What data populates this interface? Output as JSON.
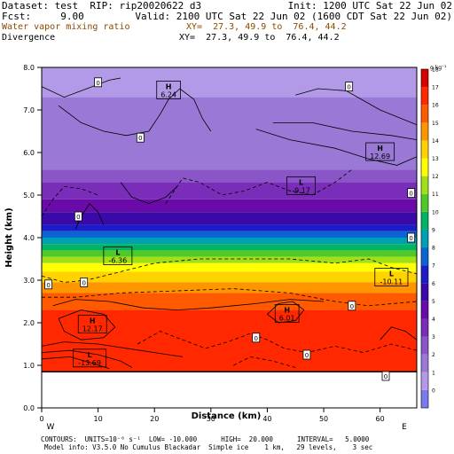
{
  "header": {
    "line1_left": "Dataset: test  RIP: rip20020622 d3",
    "line1_right": "Init: 1200 UTC Sat 22 Jun 02",
    "line2_left": "Fcst:     9.00",
    "line2_right": "Valid: 2100 UTC Sat 22 Jun 02 (1600 CDT Sat 22 Jun 02)",
    "line3_left": "Water vapor mixing ratio",
    "line3_right": "XY=  27.3, 49.9 to  76.4, 44.2",
    "line4_left": "Divergence",
    "line4_right": "XY=  27.3, 49.9 to  76.4, 44.2",
    "colors": {
      "line3": "#8b4a00"
    }
  },
  "footer": {
    "line1": "CONTOURS:  UNITS=10⁻⁶ s⁻¹  LOW= -10.000      HIGH=  20.000      INTERVAL=   5.0000",
    "line2": "Model info: V3.5.0 No Cumulus Blackadar  Simple ice    1 km,   29 levels,    3 sec"
  },
  "chart_data": {
    "type": "heatmap",
    "xlabel": "Distance (km)",
    "ylabel": "Height (km)",
    "xlim": [
      0,
      66.5
    ],
    "ylim": [
      0,
      8.0
    ],
    "x_ticks": [
      0,
      10,
      20,
      30,
      40,
      50,
      60
    ],
    "y_ticks": [
      "0.0",
      "1.0",
      "2.0",
      "3.0",
      "4.0",
      "5.0",
      "6.0",
      "7.0",
      "8.0"
    ],
    "x_end_labels": {
      "left": "W",
      "right": "E"
    },
    "colorbar": {
      "unit_label": "g kg⁻¹",
      "levels": [
        -1,
        0,
        1,
        2,
        3,
        4,
        5,
        6,
        7,
        8,
        9,
        10,
        11,
        12,
        13,
        14,
        15,
        16,
        17,
        18
      ],
      "tick_labels": [
        "0",
        "1",
        "2",
        "3",
        "4",
        "5",
        "6",
        "7",
        "8",
        "9",
        "10",
        "11",
        "12",
        "13",
        "14",
        "15",
        "16",
        "17",
        "18"
      ],
      "colors": [
        "#7b7bf0",
        "#b39ae8",
        "#9a79d6",
        "#8a55c6",
        "#7a2db8",
        "#6a0aa8",
        "#3a0aa8",
        "#1c1cc8",
        "#0a64d2",
        "#00a0b4",
        "#00b464",
        "#50c828",
        "#a0e018",
        "#ffff00",
        "#ffd200",
        "#ff9600",
        "#ff5a00",
        "#ff2800",
        "#d70000"
      ]
    },
    "moisture_bands": [
      {
        "top": 8.0,
        "bottom": 7.3,
        "value": 0
      },
      {
        "top": 7.3,
        "bottom": 5.6,
        "value": 1
      },
      {
        "top": 5.6,
        "bottom": 5.3,
        "value": 2
      },
      {
        "top": 5.3,
        "bottom": 4.9,
        "value": 3
      },
      {
        "top": 4.9,
        "bottom": 4.6,
        "value": 4
      },
      {
        "top": 4.6,
        "bottom": 4.3,
        "value": 5
      },
      {
        "top": 4.3,
        "bottom": 4.15,
        "value": 6
      },
      {
        "top": 4.15,
        "bottom": 4.0,
        "value": 7
      },
      {
        "top": 4.0,
        "bottom": 3.85,
        "value": 8
      },
      {
        "top": 3.85,
        "bottom": 3.7,
        "value": 9
      },
      {
        "top": 3.7,
        "bottom": 3.55,
        "value": 10
      },
      {
        "top": 3.55,
        "bottom": 3.4,
        "value": 11
      },
      {
        "top": 3.4,
        "bottom": 3.2,
        "value": 12
      },
      {
        "top": 3.2,
        "bottom": 2.95,
        "value": 13
      },
      {
        "top": 2.95,
        "bottom": 2.7,
        "value": 14
      },
      {
        "top": 2.7,
        "bottom": 2.3,
        "value": 15
      },
      {
        "top": 2.3,
        "bottom": 0.85,
        "value": 16
      }
    ],
    "terrain_top": 0.85,
    "extrema_labels": [
      {
        "kind": "H",
        "value": "6.24",
        "x": 22.5,
        "y": 7.45
      },
      {
        "kind": "H",
        "value": "12.69",
        "x": 60,
        "y": 6.0
      },
      {
        "kind": "L",
        "value": "-9.17",
        "x": 46,
        "y": 5.2
      },
      {
        "kind": "L",
        "value": "-6.36",
        "x": 13.5,
        "y": 3.55
      },
      {
        "kind": "L",
        "value": "-10.11",
        "x": 62,
        "y": 3.05
      },
      {
        "kind": "H",
        "value": "12.17",
        "x": 9,
        "y": 1.95
      },
      {
        "kind": "H",
        "value": "6.01",
        "x": 43.5,
        "y": 2.2
      },
      {
        "kind": "L",
        "value": "-13.69",
        "x": 8.5,
        "y": 1.15
      }
    ],
    "zero_labels": [
      {
        "x": 10,
        "y": 7.65
      },
      {
        "x": 54.5,
        "y": 7.55
      },
      {
        "x": 17.5,
        "y": 6.35
      },
      {
        "x": 65.5,
        "y": 5.05
      },
      {
        "x": 6.5,
        "y": 4.5
      },
      {
        "x": 65.5,
        "y": 4.0
      },
      {
        "x": 1.2,
        "y": 2.9
      },
      {
        "x": 7.5,
        "y": 2.95
      },
      {
        "x": 55,
        "y": 2.4
      },
      {
        "x": 38,
        "y": 1.65
      },
      {
        "x": 47,
        "y": 1.25
      },
      {
        "x": 61,
        "y": 0.75
      }
    ],
    "contours": [
      {
        "style": "solid",
        "pts": [
          [
            0,
            7.55
          ],
          [
            4,
            7.3
          ],
          [
            8,
            7.5
          ],
          [
            12,
            7.7
          ],
          [
            14,
            7.75
          ]
        ]
      },
      {
        "style": "solid",
        "pts": [
          [
            3,
            7.1
          ],
          [
            7,
            6.7
          ],
          [
            11,
            6.5
          ],
          [
            15,
            6.4
          ],
          [
            19,
            6.5
          ],
          [
            21,
            6.9
          ],
          [
            22.5,
            7.25
          ],
          [
            24.5,
            7.5
          ],
          [
            27,
            7.25
          ],
          [
            28.5,
            6.8
          ],
          [
            30,
            6.5
          ]
        ]
      },
      {
        "style": "solid",
        "pts": [
          [
            45,
            7.35
          ],
          [
            49,
            7.5
          ],
          [
            54,
            7.45
          ],
          [
            60,
            7.0
          ],
          [
            66.5,
            6.65
          ]
        ]
      },
      {
        "style": "solid",
        "pts": [
          [
            38,
            6.55
          ],
          [
            44,
            6.3
          ],
          [
            52,
            6.1
          ],
          [
            58,
            5.85
          ],
          [
            63,
            5.7
          ],
          [
            66.5,
            5.9
          ]
        ]
      },
      {
        "style": "solid",
        "pts": [
          [
            41,
            6.7
          ],
          [
            48,
            6.7
          ],
          [
            55,
            6.5
          ],
          [
            62,
            6.4
          ],
          [
            66.5,
            6.3
          ]
        ]
      },
      {
        "style": "solid",
        "pts": [
          [
            14,
            5.3
          ],
          [
            16,
            4.95
          ],
          [
            19,
            4.8
          ],
          [
            22,
            4.95
          ],
          [
            24,
            5.2
          ]
        ]
      },
      {
        "style": "solid",
        "pts": [
          [
            6,
            4.2
          ],
          [
            7,
            4.5
          ],
          [
            8.5,
            4.8
          ],
          [
            10,
            4.6
          ],
          [
            11,
            4.3
          ]
        ]
      },
      {
        "style": "dashed",
        "pts": [
          [
            0,
            4.5
          ],
          [
            2,
            4.9
          ],
          [
            4,
            5.2
          ],
          [
            7,
            5.15
          ],
          [
            10,
            5.0
          ]
        ]
      },
      {
        "style": "dashed",
        "pts": [
          [
            22,
            4.8
          ],
          [
            25,
            5.4
          ],
          [
            28,
            5.3
          ],
          [
            32,
            5.0
          ],
          [
            36,
            5.1
          ],
          [
            40,
            5.3
          ],
          [
            44,
            5.1
          ],
          [
            48,
            5.0
          ],
          [
            52,
            5.3
          ],
          [
            55,
            5.6
          ]
        ]
      },
      {
        "style": "dashed",
        "pts": [
          [
            0,
            3.1
          ],
          [
            4,
            2.95
          ],
          [
            8,
            3.0
          ],
          [
            14,
            3.2
          ],
          [
            20,
            3.4
          ],
          [
            28,
            3.5
          ],
          [
            36,
            3.5
          ],
          [
            44,
            3.5
          ],
          [
            52,
            3.4
          ],
          [
            58,
            3.5
          ],
          [
            62,
            3.3
          ],
          [
            66.5,
            3.15
          ]
        ]
      },
      {
        "style": "dashed",
        "pts": [
          [
            0,
            2.6
          ],
          [
            6,
            2.6
          ],
          [
            14,
            2.7
          ],
          [
            24,
            2.75
          ],
          [
            34,
            2.8
          ],
          [
            44,
            2.7
          ],
          [
            52,
            2.5
          ],
          [
            58,
            2.4
          ],
          [
            66.5,
            2.5
          ]
        ]
      },
      {
        "style": "solid",
        "pts": [
          [
            2,
            2.4
          ],
          [
            6,
            2.55
          ],
          [
            12,
            2.5
          ],
          [
            18,
            2.35
          ],
          [
            24,
            2.3
          ],
          [
            30,
            2.35
          ],
          [
            38,
            2.45
          ],
          [
            44,
            2.55
          ],
          [
            50,
            2.5
          ]
        ]
      },
      {
        "style": "solid",
        "pts": [
          [
            3,
            2.1
          ],
          [
            7,
            2.3
          ],
          [
            11,
            2.2
          ],
          [
            13,
            1.9
          ],
          [
            11,
            1.65
          ],
          [
            7,
            1.6
          ],
          [
            4,
            1.8
          ],
          [
            3,
            2.1
          ]
        ]
      },
      {
        "style": "solid",
        "pts": [
          [
            0,
            1.45
          ],
          [
            4,
            1.55
          ],
          [
            10,
            1.5
          ],
          [
            15,
            1.4
          ],
          [
            20,
            1.3
          ],
          [
            25,
            1.2
          ]
        ]
      },
      {
        "style": "solid",
        "pts": [
          [
            0,
            1.3
          ],
          [
            5,
            1.35
          ],
          [
            10,
            1.25
          ],
          [
            14,
            1.1
          ],
          [
            16,
            0.95
          ]
        ]
      },
      {
        "style": "solid",
        "pts": [
          [
            0,
            1.15
          ],
          [
            5,
            1.2
          ],
          [
            9,
            1.05
          ],
          [
            12,
            0.92
          ]
        ]
      },
      {
        "style": "dashed",
        "pts": [
          [
            17,
            1.5
          ],
          [
            21,
            1.8
          ],
          [
            25,
            1.6
          ],
          [
            29,
            1.4
          ],
          [
            33,
            1.55
          ],
          [
            37,
            1.75
          ],
          [
            40,
            1.6
          ],
          [
            43,
            1.4
          ],
          [
            47,
            1.3
          ],
          [
            52,
            1.45
          ],
          [
            57,
            1.3
          ],
          [
            62,
            1.5
          ],
          [
            66.5,
            1.35
          ]
        ]
      },
      {
        "style": "dashed",
        "pts": [
          [
            34,
            1.0
          ],
          [
            37,
            1.2
          ],
          [
            41,
            1.1
          ],
          [
            45,
            0.95
          ]
        ]
      },
      {
        "style": "solid",
        "pts": [
          [
            40,
            2.2
          ],
          [
            42,
            2.45
          ],
          [
            44.5,
            2.5
          ],
          [
            46.5,
            2.3
          ],
          [
            45,
            2.05
          ],
          [
            42,
            2.0
          ],
          [
            40,
            2.2
          ]
        ]
      },
      {
        "style": "solid",
        "pts": [
          [
            60,
            1.6
          ],
          [
            62,
            1.9
          ],
          [
            64.5,
            1.8
          ],
          [
            66.5,
            1.6
          ]
        ]
      }
    ]
  }
}
